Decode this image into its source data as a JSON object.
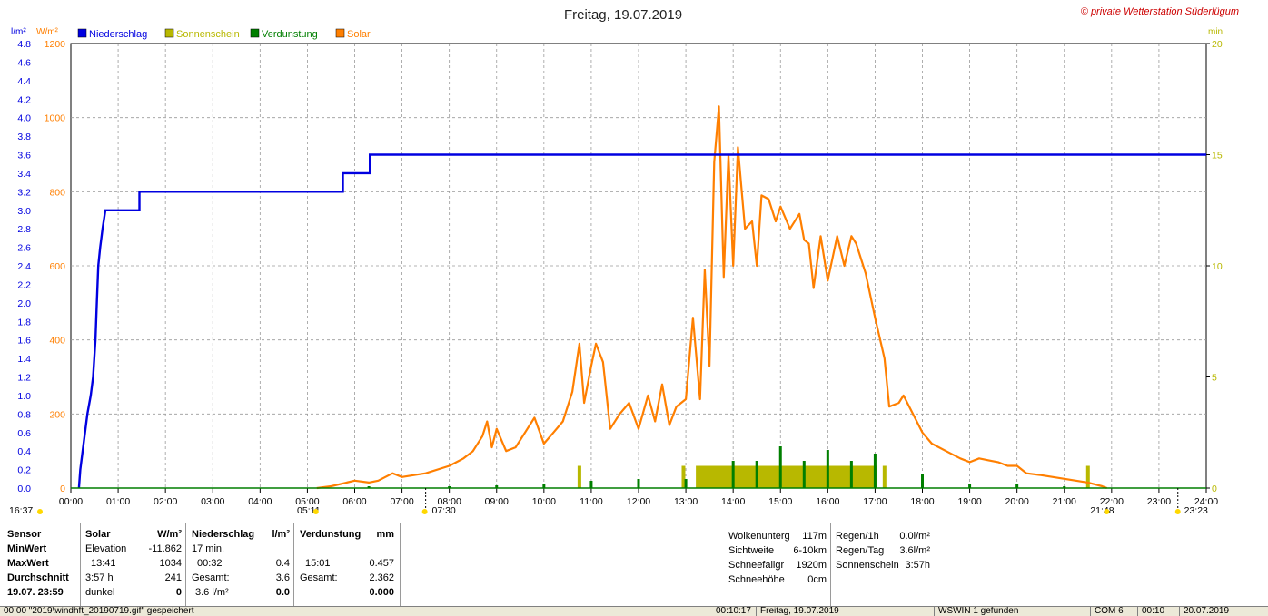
{
  "header": {
    "title": "Freitag, 19.07.2019",
    "copyright": "© private Wetterstation Süderlügum",
    "unit_left1": "l/m²",
    "unit_left2": "W/m²",
    "unit_right": "min"
  },
  "legend": [
    {
      "label": "Niederschlag",
      "color": "#0000e0"
    },
    {
      "label": "Sonnenschein",
      "color": "#b8b800"
    },
    {
      "label": "Verdunstung",
      "color": "#007f00"
    },
    {
      "label": "Solar",
      "color": "#ff7f00"
    }
  ],
  "chart_data": {
    "type": "line",
    "title": "Freitag, 19.07.2019",
    "x_range_hours": [
      0,
      24
    ],
    "x_ticks": [
      "00:00",
      "01:00",
      "02:00",
      "03:00",
      "04:00",
      "05:00",
      "06:00",
      "07:00",
      "08:00",
      "09:00",
      "10:00",
      "11:00",
      "12:00",
      "13:00",
      "14:00",
      "15:00",
      "16:00",
      "17:00",
      "18:00",
      "19:00",
      "20:00",
      "21:00",
      "22:00",
      "23:00",
      "24:00"
    ],
    "y_left_precip": {
      "unit": "l/m²",
      "range": [
        0,
        4.8
      ],
      "ticks": [
        "0.0",
        "0.2",
        "0.4",
        "0.6",
        "0.8",
        "1.0",
        "1.2",
        "1.4",
        "1.6",
        "1.8",
        "2.0",
        "2.2",
        "2.4",
        "2.6",
        "2.8",
        "3.0",
        "3.2",
        "3.4",
        "3.6",
        "3.8",
        "4.0",
        "4.2",
        "4.4",
        "4.6",
        "4.8"
      ]
    },
    "y_left_solar": {
      "unit": "W/m²",
      "range": [
        0,
        1200
      ],
      "ticks": [
        "0",
        "200",
        "400",
        "600",
        "800",
        "1000",
        "1200"
      ]
    },
    "y_right_minutes": {
      "unit": "min",
      "range": [
        0,
        20
      ],
      "ticks": [
        "0",
        "5",
        "10",
        "15",
        "20"
      ]
    },
    "grid": true,
    "series": [
      {
        "name": "Niederschlag",
        "color": "#0000e0",
        "points": [
          [
            0.17,
            0
          ],
          [
            0.2,
            0.2
          ],
          [
            0.25,
            0.4
          ],
          [
            0.3,
            0.6
          ],
          [
            0.35,
            0.8
          ],
          [
            0.42,
            1.0
          ],
          [
            0.47,
            1.2
          ],
          [
            0.52,
            1.6
          ],
          [
            0.55,
            2.0
          ],
          [
            0.58,
            2.4
          ],
          [
            0.62,
            2.6
          ],
          [
            0.67,
            2.8
          ],
          [
            0.73,
            3.0
          ],
          [
            1.45,
            3.0
          ],
          [
            1.45,
            3.2
          ],
          [
            5.75,
            3.2
          ],
          [
            5.75,
            3.4
          ],
          [
            6.32,
            3.4
          ],
          [
            6.32,
            3.6
          ],
          [
            24,
            3.6
          ]
        ]
      },
      {
        "name": "Solar",
        "color": "#ff7f00",
        "points": [
          [
            5.2,
            0
          ],
          [
            5.5,
            5
          ],
          [
            6.0,
            20
          ],
          [
            6.3,
            15
          ],
          [
            6.5,
            20
          ],
          [
            6.8,
            40
          ],
          [
            7.0,
            30
          ],
          [
            7.5,
            40
          ],
          [
            8.0,
            60
          ],
          [
            8.3,
            80
          ],
          [
            8.5,
            100
          ],
          [
            8.7,
            140
          ],
          [
            8.8,
            180
          ],
          [
            8.9,
            110
          ],
          [
            9.0,
            160
          ],
          [
            9.2,
            100
          ],
          [
            9.4,
            110
          ],
          [
            9.6,
            150
          ],
          [
            9.8,
            190
          ],
          [
            10.0,
            120
          ],
          [
            10.2,
            150
          ],
          [
            10.4,
            180
          ],
          [
            10.6,
            260
          ],
          [
            10.75,
            390
          ],
          [
            10.85,
            230
          ],
          [
            11.0,
            330
          ],
          [
            11.1,
            390
          ],
          [
            11.25,
            340
          ],
          [
            11.4,
            160
          ],
          [
            11.6,
            200
          ],
          [
            11.8,
            230
          ],
          [
            12.0,
            160
          ],
          [
            12.2,
            250
          ],
          [
            12.35,
            180
          ],
          [
            12.5,
            280
          ],
          [
            12.65,
            170
          ],
          [
            12.8,
            220
          ],
          [
            13.0,
            240
          ],
          [
            13.15,
            460
          ],
          [
            13.3,
            240
          ],
          [
            13.4,
            590
          ],
          [
            13.5,
            330
          ],
          [
            13.6,
            880
          ],
          [
            13.7,
            1030
          ],
          [
            13.8,
            570
          ],
          [
            13.9,
            900
          ],
          [
            14.0,
            600
          ],
          [
            14.1,
            920
          ],
          [
            14.25,
            700
          ],
          [
            14.4,
            720
          ],
          [
            14.5,
            600
          ],
          [
            14.6,
            790
          ],
          [
            14.75,
            780
          ],
          [
            14.9,
            720
          ],
          [
            15.0,
            760
          ],
          [
            15.2,
            700
          ],
          [
            15.4,
            740
          ],
          [
            15.5,
            670
          ],
          [
            15.6,
            660
          ],
          [
            15.7,
            540
          ],
          [
            15.85,
            680
          ],
          [
            16.0,
            560
          ],
          [
            16.2,
            680
          ],
          [
            16.35,
            600
          ],
          [
            16.5,
            680
          ],
          [
            16.6,
            660
          ],
          [
            16.8,
            580
          ],
          [
            17.0,
            460
          ],
          [
            17.2,
            350
          ],
          [
            17.3,
            220
          ],
          [
            17.5,
            230
          ],
          [
            17.6,
            250
          ],
          [
            17.8,
            200
          ],
          [
            18.0,
            150
          ],
          [
            18.2,
            120
          ],
          [
            18.5,
            100
          ],
          [
            18.8,
            80
          ],
          [
            19.0,
            70
          ],
          [
            19.2,
            80
          ],
          [
            19.4,
            75
          ],
          [
            19.6,
            70
          ],
          [
            19.8,
            60
          ],
          [
            20.0,
            60
          ],
          [
            20.2,
            40
          ],
          [
            20.5,
            35
          ],
          [
            21.0,
            25
          ],
          [
            21.5,
            15
          ],
          [
            21.8,
            5
          ],
          [
            21.9,
            0
          ]
        ]
      },
      {
        "name": "Sonnenschein",
        "color": "#b8b800",
        "unit": "min",
        "points": [
          [
            10.75,
            1
          ],
          [
            12.95,
            1
          ],
          [
            13.25,
            1
          ],
          [
            13.3,
            1
          ],
          [
            13.5,
            1
          ],
          [
            14.0,
            1
          ],
          [
            14.5,
            1
          ],
          [
            15.0,
            1
          ],
          [
            15.5,
            1
          ],
          [
            16.0,
            1
          ],
          [
            16.5,
            1
          ],
          [
            17.0,
            1
          ],
          [
            17.2,
            1
          ],
          [
            21.5,
            1
          ]
        ]
      },
      {
        "name": "Verdunstung",
        "color": "#007f00",
        "unit": "mm",
        "points": [
          [
            6.3,
            0.02
          ],
          [
            8.0,
            0.02
          ],
          [
            9.0,
            0.03
          ],
          [
            10.0,
            0.05
          ],
          [
            11.0,
            0.08
          ],
          [
            12.0,
            0.1
          ],
          [
            13.0,
            0.1
          ],
          [
            14.0,
            0.3
          ],
          [
            14.5,
            0.3
          ],
          [
            15.0,
            0.46
          ],
          [
            15.5,
            0.3
          ],
          [
            16.0,
            0.42
          ],
          [
            16.5,
            0.3
          ],
          [
            17.0,
            0.38
          ],
          [
            18.0,
            0.15
          ],
          [
            19.0,
            0.05
          ],
          [
            20.0,
            0.05
          ],
          [
            21.0,
            0.02
          ]
        ]
      }
    ],
    "markers": {
      "left_time": "16:37",
      "sunrise": "05:11",
      "solar_start": "07:30",
      "sunset": "21:48",
      "right_time": "23:23"
    }
  },
  "panel": {
    "sensor": {
      "h": "Sensor",
      "min": "MinWert",
      "max": "MaxWert",
      "avg": "Durchschnitt",
      "date": "19.07. 23:59"
    },
    "solar": {
      "h": "Solar",
      "unit": "W/m²",
      "r1a": "Elevation",
      "r1b": "-11.862",
      "r2a": "13:41",
      "r2b": "1034",
      "r3a": "3:57 h",
      "r3b": "241",
      "r4a": "dunkel",
      "r4b": "0"
    },
    "precip": {
      "h": "Niederschlag",
      "unit": "l/m²",
      "r1a": "17 min.",
      "r2a": "00:32",
      "r2b": "0.4",
      "r3a": "Gesamt:",
      "r3b": "3.6",
      "r4a": "3.6 l/m²",
      "r4b": "0.0"
    },
    "evap": {
      "h": "Verdunstung",
      "unit": "mm",
      "r2a": "15:01",
      "r2b": "0.457",
      "r3a": "Gesamt:",
      "r3b": "2.362",
      "r4b": "0.000"
    },
    "clouds": [
      [
        "Wolkenunterg",
        "117m"
      ],
      [
        "Sichtweite",
        "6-10km"
      ],
      [
        "Schneefallgr",
        "1920m"
      ],
      [
        "Schneehöhe",
        "0cm"
      ]
    ],
    "rain": [
      [
        "Regen/1h",
        "0.0l/m²"
      ],
      [
        "Regen/Tag",
        "3.6l/m²"
      ],
      [
        "Sonnenschein",
        "3:57h"
      ]
    ]
  },
  "statusbar": {
    "file": "00:00 \"2019\\windhft_20190719.gif\" gespeichert",
    "time": "00:10:17",
    "date": "Freitag, 19.07.2019",
    "ws": "WSWIN 1 gefunden",
    "com": "COM 6",
    "clock": "00:10",
    "date2": "20.07.2019"
  }
}
